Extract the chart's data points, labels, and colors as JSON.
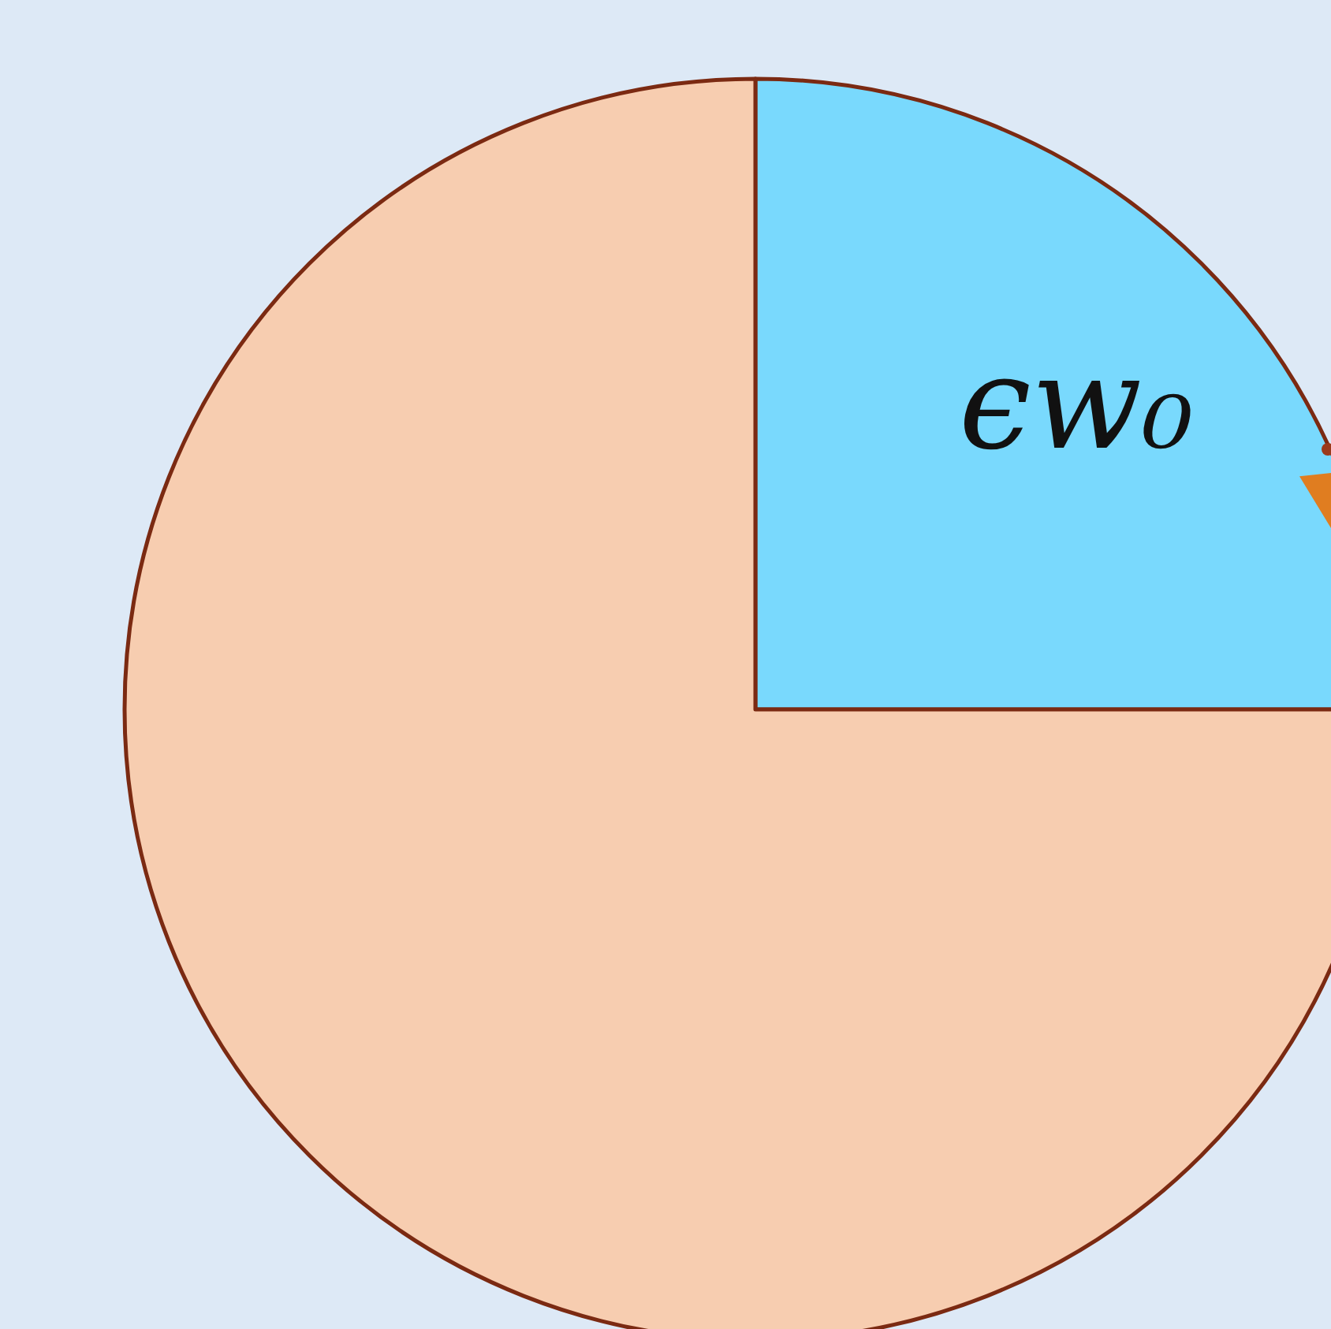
{
  "chart_data": {
    "type": "pie",
    "categories": [
      "ϵw₀",
      null
    ],
    "values": [
      25,
      75
    ],
    "colors": [
      "#79d9fd",
      "#f7cdb0"
    ],
    "legend": false
  }
}
